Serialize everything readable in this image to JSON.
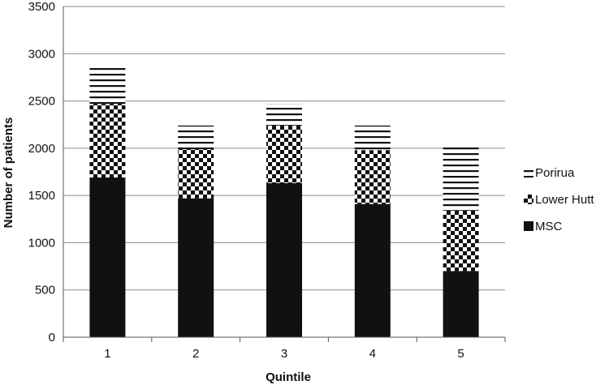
{
  "chart_data": {
    "type": "bar",
    "stacked": true,
    "categories": [
      "1",
      "2",
      "3",
      "4",
      "5"
    ],
    "series": [
      {
        "name": "MSC",
        "values": [
          1690,
          1470,
          1630,
          1410,
          700
        ],
        "pattern": "solid"
      },
      {
        "name": "Lower Hutt",
        "values": [
          780,
          520,
          610,
          570,
          640
        ],
        "pattern": "checker"
      },
      {
        "name": "Porirua",
        "values": [
          400,
          250,
          230,
          260,
          670
        ],
        "pattern": "horizontal-lines"
      }
    ],
    "xlabel": "Quintile",
    "ylabel": "Number of patients",
    "ylim": [
      0,
      3500
    ],
    "yticks": [
      0,
      500,
      1000,
      1500,
      2000,
      2500,
      3000,
      3500
    ],
    "grid": true,
    "legend": {
      "placement": "right",
      "order": [
        "Porirua",
        "Lower Hutt",
        "MSC"
      ]
    },
    "colors": {
      "bar": "#111111",
      "grid": "#8a8a8a",
      "axis": "#555555",
      "background": "#ffffff"
    }
  }
}
